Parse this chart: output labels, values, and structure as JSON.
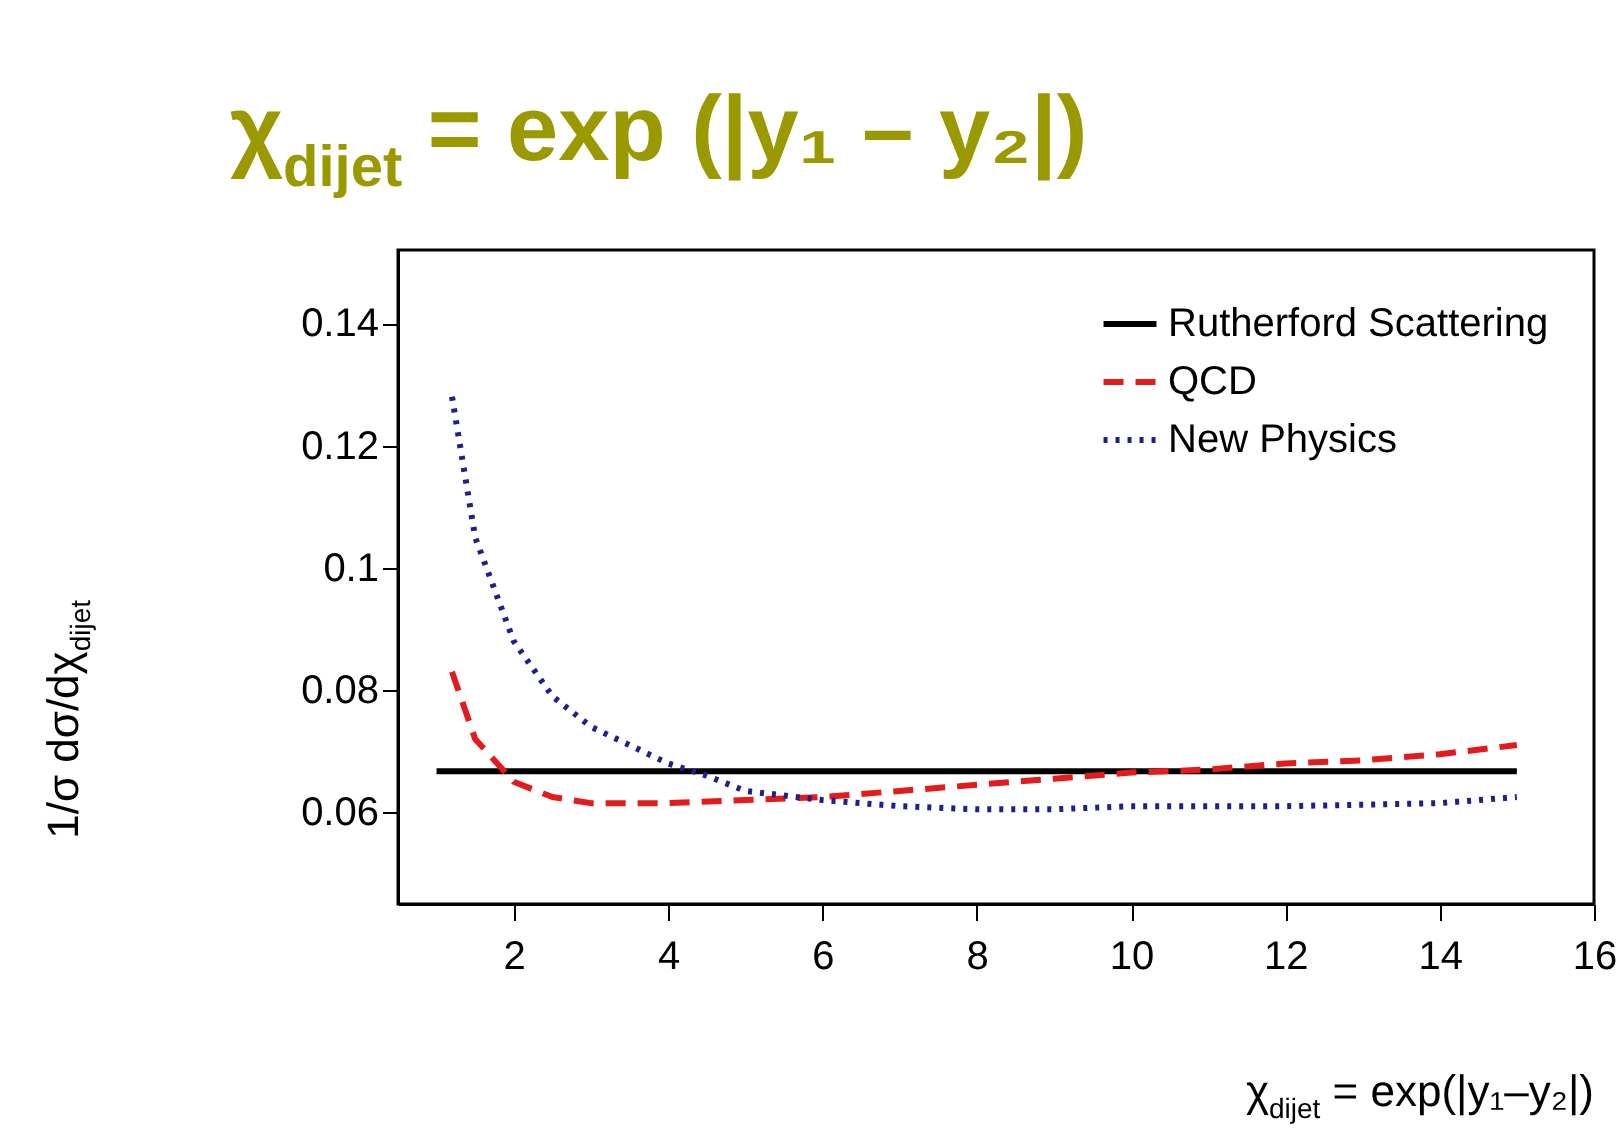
{
  "chart_data": {
    "type": "line",
    "title": "χ$_{dijet}$ = exp (|y₁ – y₂|)",
    "xlabel": "χ$_{dijet}$ = exp(|y₁–y₂|)",
    "ylabel": "1/σ dσ/dχ$_{dijet}$",
    "xlim": [
      0.5,
      16
    ],
    "xticks": [
      2,
      4,
      6,
      8,
      10,
      12,
      14,
      16
    ],
    "ylim": [
      0.045,
      0.152
    ],
    "yticks": [
      0.06,
      0.08,
      {
        "value": 0.1,
        "label": "0.1"
      },
      0.12,
      0.14
    ],
    "grid": false,
    "legend": "top right",
    "marker": "none",
    "series": [
      {
        "name": "Rutherford Scattering",
        "color": "#000000",
        "line_style": "solid",
        "x": [
          1,
          15
        ],
        "values": [
          0.0667,
          0.0667
        ]
      },
      {
        "name": "QCD",
        "color": "#e41a1c",
        "line_style": "dashed",
        "x": [
          1.2,
          1.5,
          2,
          2.5,
          3,
          4,
          5,
          6,
          7,
          8,
          9,
          10,
          11,
          12,
          13,
          14,
          15
        ],
        "values": [
          0.083,
          0.072,
          0.065,
          0.0625,
          0.0615,
          0.0615,
          0.062,
          0.0625,
          0.0635,
          0.0645,
          0.0655,
          0.0665,
          0.067,
          0.068,
          0.0685,
          0.0695,
          0.071
        ]
      },
      {
        "name": "New Physics",
        "color": "#1f1f8f",
        "line_style": "dotted",
        "x": [
          1.2,
          1.5,
          2,
          2.5,
          3,
          3.5,
          4,
          4.5,
          5,
          6,
          7,
          8,
          9,
          10,
          12,
          14,
          15
        ],
        "values": [
          0.128,
          0.105,
          0.088,
          0.079,
          0.074,
          0.071,
          0.068,
          0.066,
          0.0635,
          0.062,
          0.061,
          0.0605,
          0.0605,
          0.061,
          0.061,
          0.0615,
          0.0625
        ]
      }
    ]
  }
}
